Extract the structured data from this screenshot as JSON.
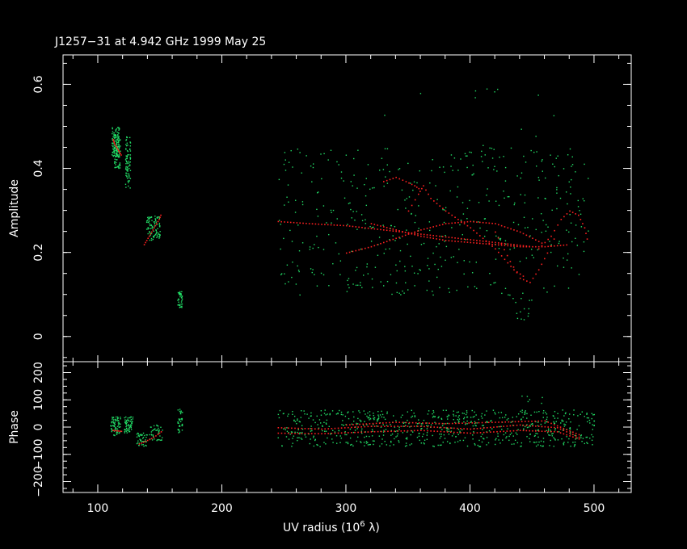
{
  "chart_data": {
    "type": "scatter",
    "title": "J1257−31 at 4.942 GHz 1999 May 25",
    "xlabel": "UV radius  (10",
    "xlabel_sup": "6",
    "xlabel_end": " λ)",
    "colors": {
      "background": "#000000",
      "model": "#ff2020",
      "data": "#22dd66",
      "axes": "#ffffff"
    },
    "xlim": [
      72,
      530
    ],
    "x_ticks": [
      100,
      200,
      300,
      400,
      500
    ],
    "x_tick_labels": [
      "100",
      "200",
      "300",
      "400",
      "500"
    ],
    "panels": [
      {
        "name": "amplitude",
        "ylabel": "Amplitude",
        "ylim": [
          -0.06,
          0.67
        ],
        "y_ticks": [
          0,
          0.2,
          0.4,
          0.6
        ],
        "y_tick_labels": [
          "0",
          "0.2",
          "0.4",
          "0.6"
        ],
        "data_clusters": [
          {
            "x": [
              111,
              117
            ],
            "y": [
              0.43,
              0.5
            ],
            "n": 120
          },
          {
            "x": [
              113,
              118
            ],
            "y": [
              0.4,
              0.47
            ],
            "n": 60
          },
          {
            "x": [
              122,
              126
            ],
            "y": [
              0.35,
              0.48
            ],
            "n": 80
          },
          {
            "x": [
              139,
              150
            ],
            "y": [
              0.23,
              0.29
            ],
            "n": 90
          },
          {
            "x": [
              164,
              168
            ],
            "y": [
              0.07,
              0.11
            ],
            "n": 40
          },
          {
            "x": [
              245,
              495
            ],
            "y": [
              0.1,
              0.45
            ],
            "n": 460
          },
          {
            "x": [
              330,
              470
            ],
            "y": [
              0.45,
              0.62
            ],
            "n": 12
          },
          {
            "x": [
              430,
              450
            ],
            "y": [
              0.04,
              0.1
            ],
            "n": 15
          }
        ],
        "model_tracks": [
          {
            "x": [
              112,
              113,
              115,
              117,
              119
            ],
            "y": [
              0.47,
              0.46,
              0.45,
              0.44,
              0.43
            ]
          },
          {
            "x": [
              137,
              140,
              143,
              146,
              149,
              151
            ],
            "y": [
              0.22,
              0.235,
              0.25,
              0.265,
              0.28,
              0.295
            ]
          },
          {
            "x": [
              245,
              270,
              300,
              330,
              360,
              390,
              420,
              450
            ],
            "y": [
              0.275,
              0.27,
              0.265,
              0.255,
              0.245,
              0.235,
              0.225,
              0.215
            ]
          },
          {
            "x": [
              300,
              320,
              340,
              360,
              380,
              400,
              420,
              440,
              460
            ],
            "y": [
              0.2,
              0.215,
              0.235,
              0.255,
              0.27,
              0.275,
              0.27,
              0.25,
              0.22
            ]
          },
          {
            "x": [
              320,
              340,
              360,
              380,
              400,
              420,
              440,
              460,
              480
            ],
            "y": [
              0.27,
              0.255,
              0.24,
              0.23,
              0.225,
              0.22,
              0.215,
              0.215,
              0.22
            ]
          },
          {
            "x": [
              350,
              358,
              362,
              368,
              380,
              400,
              420,
              435,
              445
            ],
            "y": [
              0.3,
              0.34,
              0.36,
              0.33,
              0.3,
              0.26,
              0.21,
              0.16,
              0.14
            ]
          },
          {
            "x": [
              420,
              432,
              440,
              448,
              455,
              462,
              470
            ],
            "y": [
              0.25,
              0.18,
              0.14,
              0.13,
              0.16,
              0.2,
              0.25
            ]
          },
          {
            "x": [
              455,
              465,
              473,
              480,
              487,
              492,
              495
            ],
            "y": [
              0.21,
              0.24,
              0.28,
              0.3,
              0.29,
              0.26,
              0.22
            ]
          },
          {
            "x": [
              330,
              340,
              348,
              355,
              360
            ],
            "y": [
              0.37,
              0.38,
              0.37,
              0.36,
              0.35
            ]
          }
        ]
      },
      {
        "name": "phase",
        "ylabel": "Phase",
        "ylim": [
          -240,
          240
        ],
        "y_ticks": [
          -200,
          -100,
          0,
          100,
          200
        ],
        "y_tick_labels": [
          "−200",
          "−100",
          "0",
          "100",
          "200"
        ],
        "data_clusters": [
          {
            "x": [
              110,
              118
            ],
            "y": [
              -30,
              40
            ],
            "n": 70
          },
          {
            "x": [
              121,
              128
            ],
            "y": [
              -20,
              40
            ],
            "n": 60
          },
          {
            "x": [
              131,
              140
            ],
            "y": [
              -70,
              -20
            ],
            "n": 40
          },
          {
            "x": [
              141,
              152
            ],
            "y": [
              -50,
              10
            ],
            "n": 40
          },
          {
            "x": [
              164,
              168
            ],
            "y": [
              -20,
              70
            ],
            "n": 35
          },
          {
            "x": [
              245,
              500
            ],
            "y": [
              -70,
              65
            ],
            "n": 700
          },
          {
            "x": [
              440,
              460
            ],
            "y": [
              60,
              120
            ],
            "n": 6
          }
        ],
        "model_tracks": [
          {
            "x": [
              112,
              116,
              120
            ],
            "y": [
              -10,
              -12,
              -14
            ]
          },
          {
            "x": [
              133,
              138,
              143,
              148,
              152
            ],
            "y": [
              -60,
              -50,
              -40,
              -25,
              -10
            ]
          },
          {
            "x": [
              245,
              280,
              320,
              360,
              400,
              440,
              470,
              490
            ],
            "y": [
              0,
              -5,
              5,
              5,
              -5,
              10,
              0,
              -40
            ]
          },
          {
            "x": [
              245,
              280,
              320,
              360,
              400,
              440,
              470,
              490
            ],
            "y": [
              -20,
              -22,
              -15,
              -10,
              -20,
              -10,
              -15,
              -45
            ]
          },
          {
            "x": [
              300,
              340,
              380,
              420,
              460,
              490
            ],
            "y": [
              10,
              20,
              15,
              20,
              25,
              -30
            ]
          }
        ]
      }
    ]
  }
}
